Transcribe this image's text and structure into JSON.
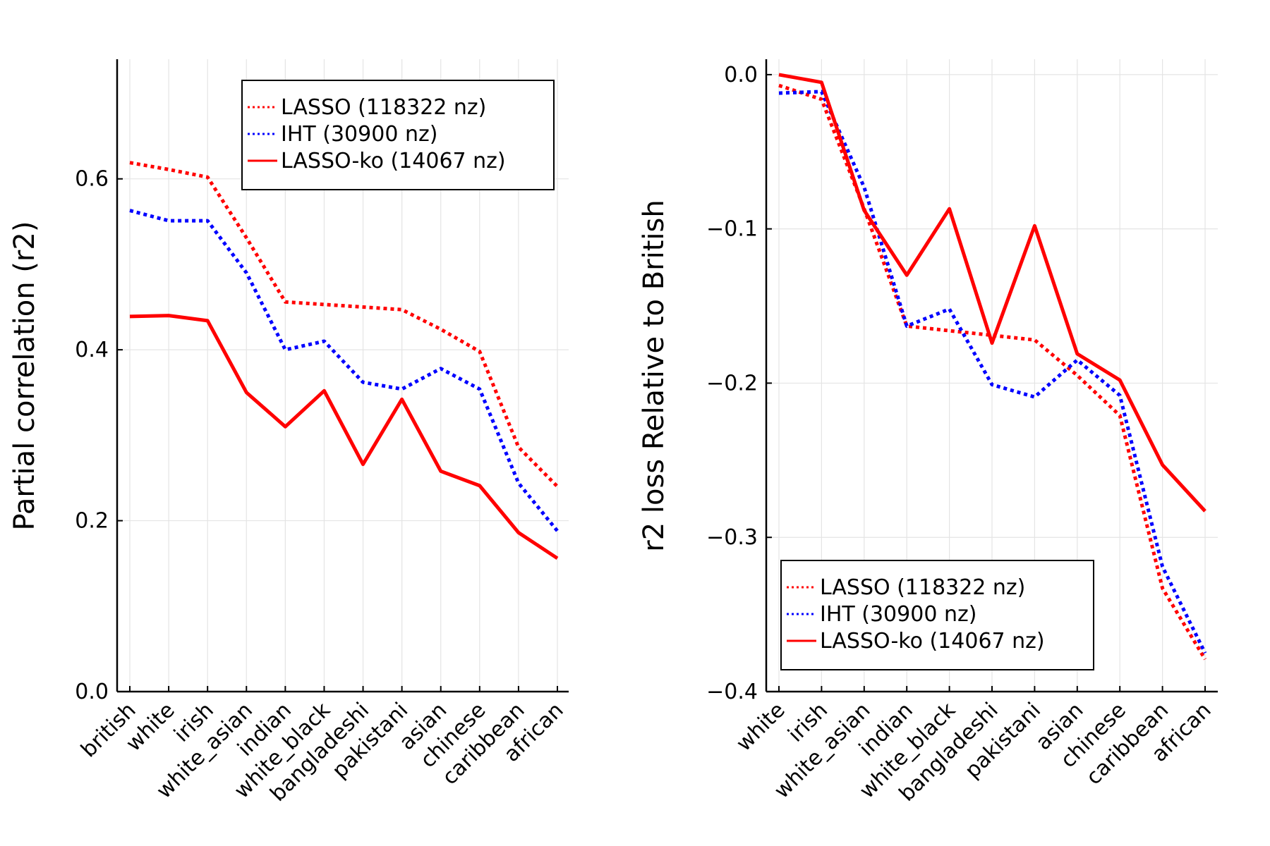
{
  "chart_data": [
    {
      "type": "line",
      "title": "",
      "xlabel": "",
      "ylabel": "Partial correlation (r2)",
      "ylim": [
        0.0,
        0.74
      ],
      "yticks": [
        "0.0",
        "0.2",
        "0.4",
        "0.6"
      ],
      "ytick_values": [
        0.0,
        0.2,
        0.4,
        0.6
      ],
      "grid": true,
      "legend_position": "top-right",
      "categories": [
        "british",
        "white",
        "irish",
        "white_asian",
        "indian",
        "white_black",
        "bangladeshi",
        "pakistani",
        "asian",
        "chinese",
        "caribbean",
        "african"
      ],
      "series": [
        {
          "name": "LASSO (118322 nz)",
          "color": "#ff0000",
          "style": "dotted",
          "values": [
            0.619,
            0.611,
            0.602,
            0.531,
            0.456,
            0.453,
            0.45,
            0.447,
            0.424,
            0.398,
            0.286,
            0.24
          ]
        },
        {
          "name": "IHT (30900 nz)",
          "color": "#0000ff",
          "style": "dotted",
          "values": [
            0.563,
            0.551,
            0.551,
            0.49,
            0.4,
            0.41,
            0.362,
            0.354,
            0.378,
            0.354,
            0.244,
            0.188
          ]
        },
        {
          "name": "LASSO-ko (14067 nz)",
          "color": "#ff0000",
          "style": "solid",
          "values": [
            0.439,
            0.44,
            0.434,
            0.35,
            0.31,
            0.352,
            0.266,
            0.342,
            0.258,
            0.241,
            0.186,
            0.156
          ]
        }
      ]
    },
    {
      "type": "line",
      "title": "",
      "xlabel": "",
      "ylabel": "r2 loss Relative to British",
      "ylim": [
        -0.4,
        0.01
      ],
      "yticks": [
        "0.0",
        "−0.1",
        "−0.2",
        "−0.3",
        "−0.4"
      ],
      "ytick_values": [
        0.0,
        -0.1,
        -0.2,
        -0.3,
        -0.4
      ],
      "grid": true,
      "legend_position": "bottom-left",
      "categories": [
        "white",
        "irish",
        "white_asian",
        "indian",
        "white_black",
        "bangladeshi",
        "pakistani",
        "asian",
        "chinese",
        "caribbean",
        "african"
      ],
      "series": [
        {
          "name": "LASSO (118322 nz)",
          "color": "#ff0000",
          "style": "dotted",
          "values": [
            -0.007,
            -0.016,
            -0.087,
            -0.163,
            -0.166,
            -0.169,
            -0.172,
            -0.195,
            -0.221,
            -0.333,
            -0.379
          ]
        },
        {
          "name": "IHT (30900 nz)",
          "color": "#0000ff",
          "style": "dotted",
          "values": [
            -0.012,
            -0.011,
            -0.073,
            -0.163,
            -0.152,
            -0.201,
            -0.209,
            -0.185,
            -0.208,
            -0.319,
            -0.375
          ]
        },
        {
          "name": "LASSO-ko (14067 nz)",
          "color": "#ff0000",
          "style": "solid",
          "values": [
            0.0,
            -0.005,
            -0.088,
            -0.13,
            -0.087,
            -0.174,
            -0.098,
            -0.181,
            -0.198,
            -0.253,
            -0.283
          ]
        }
      ]
    }
  ]
}
